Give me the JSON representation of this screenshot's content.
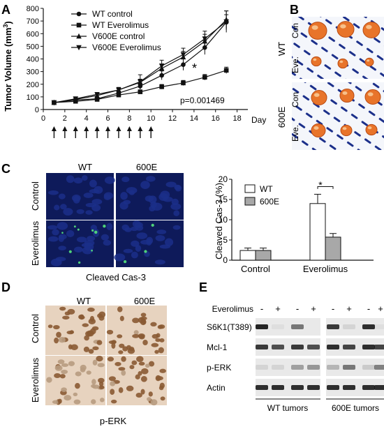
{
  "panel_labels": {
    "a": "A",
    "b": "B",
    "c": "C",
    "d": "D",
    "e": "E"
  },
  "colors": {
    "photo_blue": "#1b2f8a",
    "photo_blue_dark": "#0e1a5a",
    "tumor_orange": "#e8742a",
    "ihc_brown": "#8a5a33",
    "ihc_bg": "#e7d3bf",
    "gfp_green": "#4ed17a",
    "bar_gray": "#a8a8a8",
    "blot_band": "#1a1a1a"
  },
  "chart_data": [
    {
      "type": "line",
      "ylabel": "Tumor Volume (mm",
      "ylabel_sup": "3",
      "ylabel_end": ")",
      "xunit": "Day",
      "xlim": [
        0,
        19
      ],
      "ylim": [
        0,
        800
      ],
      "xticks": [
        0,
        2,
        4,
        6,
        8,
        10,
        12,
        14,
        16,
        18
      ],
      "yticks": [
        0,
        100,
        200,
        300,
        400,
        500,
        600,
        700,
        800
      ],
      "x": [
        1,
        3,
        5,
        7,
        9,
        11,
        13,
        15,
        17
      ],
      "series": [
        {
          "name": "WT control",
          "marker": "circle",
          "values": [
            55,
            75,
            85,
            130,
            185,
            270,
            355,
            490,
            690
          ],
          "err": [
            5,
            8,
            10,
            15,
            25,
            35,
            45,
            55,
            60
          ]
        },
        {
          "name": "WT Everolimus",
          "marker": "square",
          "values": [
            55,
            65,
            80,
            115,
            140,
            180,
            210,
            255,
            310
          ],
          "err": [
            5,
            7,
            8,
            10,
            15,
            18,
            20,
            22,
            25
          ]
        },
        {
          "name": "V600E control",
          "marker": "triangle",
          "values": [
            55,
            80,
            110,
            155,
            215,
            325,
            415,
            540,
            710
          ],
          "err": [
            6,
            9,
            12,
            18,
            25,
            35,
            45,
            55,
            70
          ]
        },
        {
          "name": "V600E Everolimus",
          "marker": "triangle-down",
          "values": [
            55,
            85,
            120,
            155,
            220,
            345,
            435,
            560,
            695
          ],
          "err": [
            6,
            10,
            15,
            20,
            55,
            45,
            50,
            60,
            85
          ]
        }
      ],
      "annotations": {
        "pvalue": "p=0.001469",
        "star": "*"
      },
      "dosing_days": [
        1,
        2,
        3,
        4,
        5,
        6,
        7,
        8,
        9,
        10
      ]
    },
    {
      "type": "bar",
      "ylabel": "Cleaved Cas-3 (%)",
      "ylim": [
        0,
        20
      ],
      "yticks": [
        0,
        5,
        10,
        15,
        20
      ],
      "categories": [
        "Control",
        "Everolimus"
      ],
      "series": [
        {
          "name": "WT",
          "fill": "#ffffff",
          "values": [
            2.4,
            14.0
          ],
          "err": [
            0.6,
            2.3
          ]
        },
        {
          "name": "600E",
          "fill": "#a8a8a8",
          "values": [
            2.4,
            5.7
          ],
          "err": [
            0.6,
            0.9
          ]
        }
      ],
      "annotations": {
        "star": "*"
      }
    }
  ],
  "panel_b": {
    "row_groups": [
      "WT",
      "600E"
    ],
    "row_labels": [
      "Con",
      "Eve."
    ]
  },
  "panel_c": {
    "col_labels": [
      "WT",
      "600E"
    ],
    "row_labels": [
      "Control",
      "Everolimus"
    ],
    "caption": "Cleaved Cas-3"
  },
  "panel_d": {
    "col_labels": [
      "WT",
      "600E"
    ],
    "row_labels": [
      "Control",
      "Everolimus"
    ],
    "caption": "p-ERK"
  },
  "panel_e": {
    "treatment_label": "Everolimus",
    "treatment_marks": [
      "-",
      "+",
      "-",
      "+",
      "-",
      "+",
      "-",
      "+"
    ],
    "proteins": [
      "S6K1(T389)",
      "Mcl-1",
      "p-ERK",
      "Actin"
    ],
    "groups": [
      "WT tumors",
      "600E tumors"
    ],
    "band_intensity": [
      [
        0.95,
        0.05,
        0.55,
        0.03,
        0.85,
        0.1,
        0.9,
        0.05
      ],
      [
        0.85,
        0.75,
        0.85,
        0.75,
        0.9,
        0.8,
        0.9,
        0.8
      ],
      [
        0.1,
        0.1,
        0.35,
        0.4,
        0.25,
        0.55,
        0.15,
        0.5
      ],
      [
        0.9,
        0.9,
        0.9,
        0.9,
        0.9,
        0.9,
        0.9,
        0.9
      ]
    ]
  }
}
